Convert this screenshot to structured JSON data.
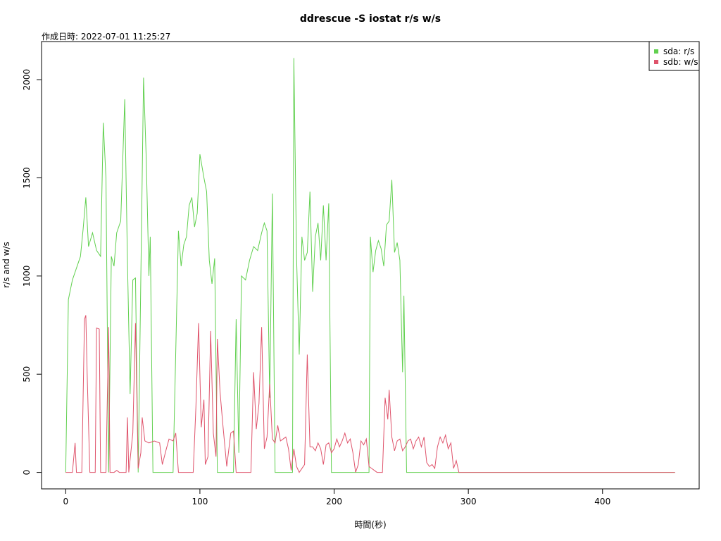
{
  "chart_data": {
    "type": "line",
    "title": "ddrescue -S iostat r/s w/s",
    "subtitle": "作成日時: 2022-07-01 11:25:27",
    "x_label": "時間(秒)",
    "y_label": "r/s and w/s",
    "xlim": [
      -18,
      472
    ],
    "ylim": [
      -84,
      2194
    ],
    "xticks": [
      0,
      100,
      200,
      300,
      400
    ],
    "yticks": [
      0,
      500,
      1000,
      1500,
      2000
    ],
    "legend": "top-right",
    "series": [
      {
        "name": "sda: r/s",
        "color": "#61d04f",
        "x": [
          0,
          2,
          5,
          8,
          11,
          13,
          15,
          17,
          20,
          23,
          26,
          28,
          30,
          32,
          34,
          36,
          38,
          41,
          44,
          46,
          48,
          50,
          52,
          54,
          56,
          58,
          60,
          62,
          63,
          65,
          80,
          84,
          86,
          88,
          90,
          92,
          94,
          96,
          98,
          100,
          103,
          105,
          107,
          109,
          111,
          113,
          125,
          127,
          129,
          131,
          134,
          137,
          140,
          143,
          146,
          148,
          150,
          152,
          154,
          156,
          169,
          170,
          172,
          174,
          176,
          178,
          180,
          182,
          184,
          186,
          188,
          190,
          192,
          194,
          196,
          198,
          226,
          227,
          229,
          231,
          233,
          235,
          237,
          239,
          241,
          243,
          245,
          247,
          249,
          251,
          252,
          254,
          454
        ],
        "values": [
          0,
          880,
          980,
          1040,
          1100,
          1240,
          1400,
          1150,
          1220,
          1130,
          1100,
          1780,
          1500,
          0,
          1100,
          1050,
          1220,
          1280,
          1900,
          1080,
          400,
          980,
          990,
          0,
          1000,
          2010,
          1600,
          1000,
          1200,
          0,
          0,
          1230,
          1050,
          1160,
          1200,
          1360,
          1400,
          1250,
          1320,
          1620,
          1500,
          1430,
          1080,
          960,
          1090,
          0,
          0,
          780,
          100,
          1000,
          980,
          1080,
          1150,
          1130,
          1220,
          1270,
          1230,
          380,
          1420,
          0,
          0,
          2110,
          1100,
          600,
          1200,
          1080,
          1120,
          1430,
          920,
          1200,
          1270,
          1080,
          1360,
          1080,
          1370,
          0,
          0,
          1200,
          1020,
          1130,
          1180,
          1140,
          1050,
          1260,
          1280,
          1490,
          1120,
          1170,
          1080,
          510,
          900,
          0,
          0
        ]
      },
      {
        "name": "sdb: w/s",
        "color": "#df536b",
        "x": [
          0,
          5,
          7,
          8,
          12,
          14,
          15,
          16,
          18,
          22,
          23,
          25,
          26,
          30,
          32,
          33,
          36,
          38,
          40,
          45,
          46,
          47,
          50,
          52,
          53,
          54,
          56,
          57,
          59,
          62,
          66,
          70,
          72,
          75,
          77,
          80,
          82,
          84,
          95,
          97,
          99,
          101,
          103,
          104,
          106,
          108,
          110,
          112,
          113,
          115,
          117,
          120,
          123,
          125,
          127,
          138,
          140,
          142,
          144,
          146,
          148,
          150,
          152,
          154,
          156,
          158,
          160,
          162,
          164,
          166,
          168,
          170,
          172,
          174,
          178,
          180,
          182,
          184,
          186,
          188,
          190,
          192,
          194,
          196,
          198,
          200,
          202,
          204,
          206,
          208,
          210,
          212,
          214,
          216,
          218,
          220,
          222,
          224,
          226,
          228,
          230,
          232,
          236,
          238,
          240,
          241,
          243,
          245,
          247,
          249,
          251,
          253,
          255,
          257,
          259,
          261,
          263,
          265,
          267,
          269,
          271,
          273,
          275,
          277,
          279,
          281,
          283,
          285,
          287,
          289,
          291,
          293,
          454
        ],
        "values": [
          0,
          0,
          150,
          0,
          0,
          780,
          800,
          500,
          0,
          0,
          735,
          730,
          0,
          0,
          740,
          0,
          0,
          10,
          0,
          0,
          280,
          0,
          200,
          760,
          400,
          20,
          100,
          280,
          160,
          150,
          160,
          150,
          40,
          120,
          170,
          160,
          200,
          0,
          0,
          330,
          760,
          230,
          370,
          40,
          80,
          720,
          200,
          80,
          680,
          410,
          250,
          30,
          200,
          210,
          0,
          0,
          510,
          220,
          350,
          740,
          120,
          180,
          450,
          170,
          150,
          240,
          160,
          170,
          180,
          120,
          10,
          120,
          30,
          0,
          40,
          600,
          130,
          130,
          110,
          150,
          120,
          40,
          140,
          150,
          100,
          120,
          170,
          130,
          160,
          200,
          150,
          170,
          100,
          0,
          40,
          160,
          140,
          170,
          30,
          20,
          10,
          0,
          0,
          380,
          270,
          420,
          180,
          110,
          160,
          170,
          110,
          130,
          160,
          170,
          120,
          160,
          180,
          130,
          180,
          50,
          30,
          40,
          20,
          130,
          180,
          150,
          190,
          120,
          150,
          20,
          60,
          0,
          0
        ]
      }
    ]
  }
}
